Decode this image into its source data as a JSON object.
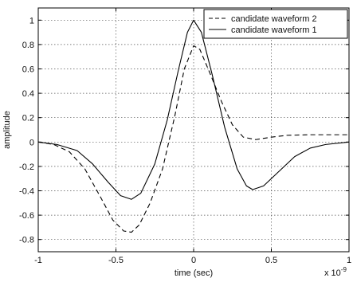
{
  "chart_data": {
    "type": "line",
    "title": "",
    "xlabel": "time (sec)",
    "ylabel": "amplitude",
    "x_multiplier": "x 10",
    "x_exponent": "-9",
    "xlim": [
      -1,
      1
    ],
    "ylim": [
      -0.9,
      1.1
    ],
    "grid": true,
    "legend_position": "top-right",
    "x_ticks": [
      -1,
      -0.5,
      0,
      0.5,
      1
    ],
    "x_tick_labels": [
      "-1",
      "-0.5",
      "0",
      "0.5",
      "1"
    ],
    "y_ticks": [
      -0.8,
      -0.6,
      -0.4,
      -0.2,
      0,
      0.2,
      0.4,
      0.6,
      0.8,
      1
    ],
    "y_tick_labels": [
      "-0.8",
      "-0.6",
      "-0.4",
      "-0.2",
      "0",
      "0.2",
      "0.4",
      "0.6",
      "0.8",
      "1"
    ],
    "series": [
      {
        "name": "candidate waveform 2",
        "style": "dashed",
        "color": "#000000",
        "points": [
          [
            -1.0,
            0.0
          ],
          [
            -0.9,
            -0.02
          ],
          [
            -0.8,
            -0.08
          ],
          [
            -0.7,
            -0.22
          ],
          [
            -0.6,
            -0.45
          ],
          [
            -0.52,
            -0.64
          ],
          [
            -0.45,
            -0.73
          ],
          [
            -0.4,
            -0.74
          ],
          [
            -0.35,
            -0.68
          ],
          [
            -0.28,
            -0.5
          ],
          [
            -0.2,
            -0.22
          ],
          [
            -0.12,
            0.22
          ],
          [
            -0.06,
            0.6
          ],
          [
            0.0,
            0.79
          ],
          [
            0.04,
            0.76
          ],
          [
            0.1,
            0.58
          ],
          [
            0.18,
            0.33
          ],
          [
            0.25,
            0.14
          ],
          [
            0.32,
            0.04
          ],
          [
            0.4,
            0.02
          ],
          [
            0.5,
            0.04
          ],
          [
            0.6,
            0.055
          ],
          [
            0.75,
            0.06
          ],
          [
            1.0,
            0.06
          ]
        ]
      },
      {
        "name": "candidate waveform 1",
        "style": "solid",
        "color": "#000000",
        "points": [
          [
            -1.0,
            0.0
          ],
          [
            -0.88,
            -0.02
          ],
          [
            -0.75,
            -0.07
          ],
          [
            -0.65,
            -0.18
          ],
          [
            -0.55,
            -0.33
          ],
          [
            -0.47,
            -0.44
          ],
          [
            -0.4,
            -0.47
          ],
          [
            -0.34,
            -0.42
          ],
          [
            -0.25,
            -0.18
          ],
          [
            -0.17,
            0.18
          ],
          [
            -0.1,
            0.58
          ],
          [
            -0.04,
            0.9
          ],
          [
            0.0,
            1.0
          ],
          [
            0.05,
            0.9
          ],
          [
            0.12,
            0.55
          ],
          [
            0.2,
            0.12
          ],
          [
            0.28,
            -0.22
          ],
          [
            0.34,
            -0.36
          ],
          [
            0.38,
            -0.39
          ],
          [
            0.45,
            -0.36
          ],
          [
            0.55,
            -0.24
          ],
          [
            0.65,
            -0.12
          ],
          [
            0.75,
            -0.05
          ],
          [
            0.85,
            -0.02
          ],
          [
            1.0,
            0.0
          ]
        ]
      }
    ]
  }
}
